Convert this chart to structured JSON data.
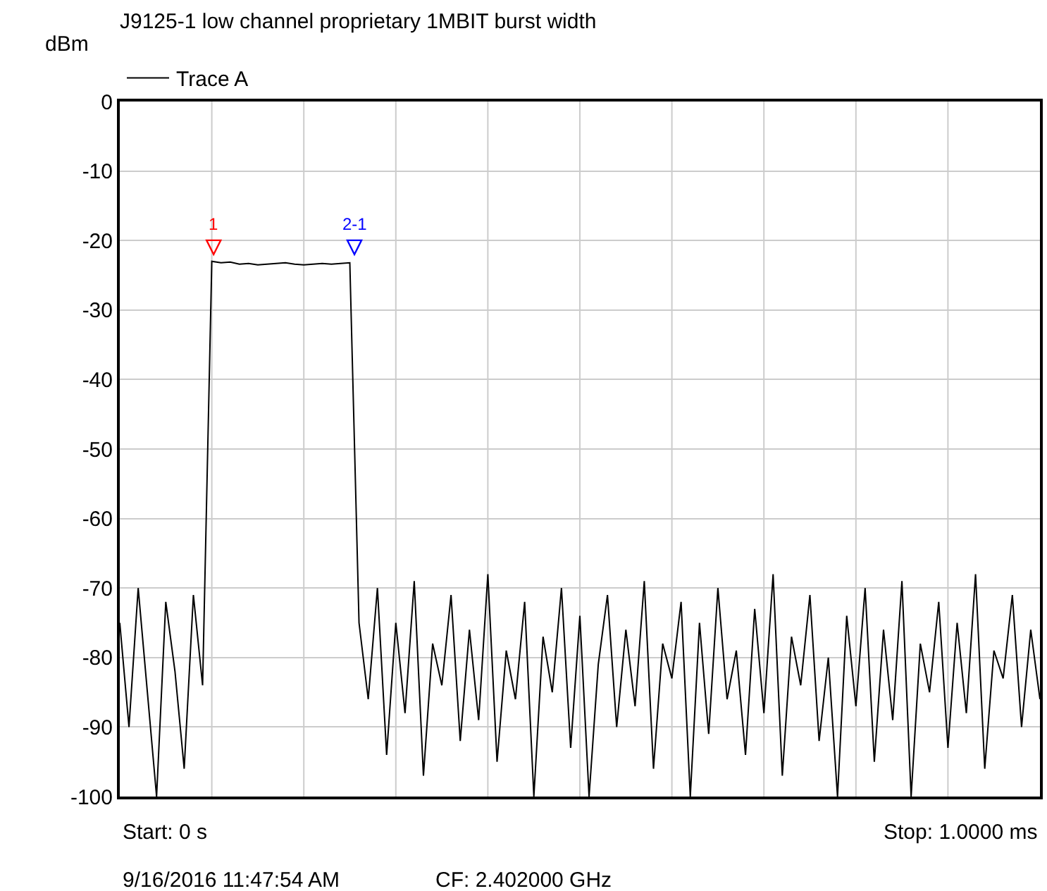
{
  "chart_data": {
    "type": "line",
    "title": "J9125-1 low channel proprietary 1MBIT burst width",
    "ylabel": "dBm",
    "categories": [
      null,
      null,
      null,
      null,
      null,
      null,
      null,
      null,
      null,
      null,
      null,
      null,
      null,
      null,
      null,
      null,
      null,
      null,
      null,
      null,
      null,
      null,
      null,
      null,
      null,
      null,
      null,
      null,
      null,
      null,
      null,
      null,
      null,
      null,
      null,
      null,
      null,
      null,
      null,
      null,
      null,
      null,
      null,
      null,
      null,
      null,
      null,
      null,
      null,
      null,
      null,
      null,
      null,
      null,
      null,
      null,
      null,
      null,
      null,
      null,
      null,
      null,
      null,
      null,
      null,
      null,
      null,
      null,
      null,
      null,
      null,
      null,
      null,
      null,
      null,
      null,
      null,
      null,
      null,
      null,
      null,
      null,
      null,
      null,
      null,
      null,
      null,
      null,
      null,
      null,
      null,
      null,
      null,
      null,
      null,
      null,
      null,
      null,
      null,
      null,
      null
    ],
    "series": [
      {
        "name": "Trace A",
        "color": "#000000",
        "values": [
          -75,
          -90,
          -70,
          -85,
          -100,
          -72,
          -82,
          -96,
          -71,
          -84,
          -23,
          -23.2,
          -23.1,
          -23.4,
          -23.3,
          -23.5,
          -23.4,
          -23.3,
          -23.2,
          -23.4,
          -23.5,
          -23.4,
          -23.3,
          -23.4,
          -23.3,
          -23.2,
          -75,
          -86,
          -70,
          -94,
          -75,
          -88,
          -69,
          -97,
          -78,
          -84,
          -71,
          -92,
          -76,
          -89,
          -68,
          -95,
          -79,
          -86,
          -72,
          -100,
          -77,
          -85,
          -70,
          -93,
          -74,
          -100,
          -81,
          -71,
          -90,
          -76,
          -87,
          -69,
          -96,
          -78,
          -83,
          -72,
          -100,
          -75,
          -91,
          -70,
          -86,
          -79,
          -94,
          -73,
          -88,
          -68,
          -97,
          -77,
          -84,
          -71,
          -92,
          -80,
          -100,
          -74,
          -87,
          -70,
          -95,
          -76,
          -89,
          -69,
          -100,
          -78,
          -85,
          -72,
          -93,
          -75,
          -88,
          -68,
          -96,
          -79,
          -83,
          -71,
          -90,
          -76,
          -86
        ]
      }
    ],
    "ylim": [
      -100,
      0
    ],
    "yticks": [
      0,
      -10,
      -20,
      -30,
      -40,
      -50,
      -60,
      -70,
      -80,
      -90,
      -100
    ],
    "tick_labels": "y",
    "grid": true,
    "legend": "top left",
    "marker": "none",
    "line_style": "solid",
    "annotations": [
      "1",
      "2-1",
      "Start: 0 s",
      "Stop: 1.0000 ms",
      "9/16/2016 11:47:54 AM",
      "CF: 2.402000 GHz"
    ]
  }
}
